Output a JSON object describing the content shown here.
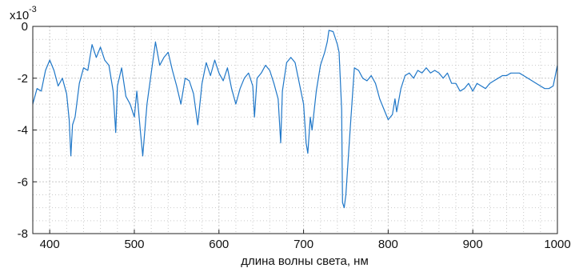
{
  "chart_data": {
    "type": "line",
    "title": "",
    "xlabel": "длина волны света, нм",
    "ylabel": "",
    "y_multiplier_base": "x10",
    "y_multiplier_exp": "-3",
    "xlim": [
      380,
      1000
    ],
    "ylim": [
      -8,
      0
    ],
    "xticks": [
      400,
      500,
      600,
      700,
      800,
      900,
      1000
    ],
    "yticks": [
      0,
      -2,
      -4,
      -6,
      -8
    ],
    "grid": true,
    "line_color": "#1f77c8",
    "series": [
      {
        "x": [
          380,
          385,
          390,
          395,
          400,
          405,
          410,
          415,
          420,
          423,
          425,
          427,
          430,
          435,
          440,
          445,
          450,
          455,
          460,
          465,
          470,
          475,
          478,
          480,
          485,
          490,
          495,
          500,
          503,
          507,
          510,
          515,
          520,
          525,
          530,
          535,
          540,
          545,
          550,
          555,
          560,
          565,
          570,
          575,
          580,
          585,
          590,
          595,
          600,
          605,
          610,
          615,
          620,
          625,
          630,
          635,
          640,
          642,
          645,
          650,
          655,
          660,
          665,
          670,
          673,
          675,
          680,
          685,
          690,
          695,
          700,
          703,
          705,
          708,
          710,
          715,
          720,
          725,
          728,
          730,
          735,
          740,
          742,
          745,
          746,
          748,
          750,
          755,
          760,
          765,
          770,
          775,
          780,
          785,
          790,
          795,
          800,
          805,
          808,
          810,
          815,
          820,
          825,
          830,
          835,
          840,
          845,
          850,
          855,
          860,
          865,
          870,
          875,
          880,
          885,
          890,
          895,
          900,
          905,
          910,
          915,
          920,
          925,
          930,
          935,
          940,
          945,
          950,
          955,
          960,
          965,
          970,
          975,
          980,
          985,
          990,
          995,
          1000
        ],
        "y": [
          -3.0,
          -2.4,
          -2.5,
          -1.7,
          -1.3,
          -1.7,
          -2.3,
          -2.0,
          -2.6,
          -3.6,
          -5.0,
          -3.8,
          -3.5,
          -2.2,
          -1.6,
          -1.7,
          -0.7,
          -1.2,
          -0.8,
          -1.3,
          -1.5,
          -2.5,
          -4.1,
          -2.3,
          -1.6,
          -2.7,
          -3.0,
          -3.5,
          -2.5,
          -4.0,
          -5.0,
          -3.0,
          -1.8,
          -0.6,
          -1.5,
          -1.2,
          -1.0,
          -1.7,
          -2.3,
          -3.0,
          -2.0,
          -2.1,
          -2.6,
          -3.8,
          -2.2,
          -1.4,
          -1.9,
          -1.3,
          -1.8,
          -2.1,
          -1.6,
          -2.4,
          -3.0,
          -2.4,
          -2.0,
          -1.8,
          -2.3,
          -3.5,
          -2.0,
          -1.8,
          -1.5,
          -1.7,
          -2.2,
          -2.8,
          -4.5,
          -2.5,
          -1.4,
          -1.2,
          -1.4,
          -2.2,
          -3.0,
          -4.5,
          -4.9,
          -3.5,
          -4.0,
          -2.5,
          -1.5,
          -1.0,
          -0.6,
          -0.15,
          -0.2,
          -0.7,
          -1.0,
          -3.2,
          -6.8,
          -7.0,
          -6.5,
          -4.0,
          -1.6,
          -1.7,
          -2.0,
          -2.1,
          -1.9,
          -2.2,
          -2.8,
          -3.2,
          -3.6,
          -3.4,
          -2.8,
          -3.3,
          -2.4,
          -1.9,
          -1.8,
          -2.0,
          -1.7,
          -1.8,
          -1.6,
          -1.8,
          -1.7,
          -1.8,
          -2.0,
          -1.8,
          -2.2,
          -2.2,
          -2.5,
          -2.4,
          -2.2,
          -2.5,
          -2.2,
          -2.3,
          -2.4,
          -2.2,
          -2.1,
          -2.0,
          -1.9,
          -1.9,
          -1.8,
          -1.8,
          -1.8,
          -1.9,
          -2.0,
          -2.1,
          -2.2,
          -2.3,
          -2.4,
          -2.4,
          -2.3,
          -1.5
        ]
      }
    ]
  }
}
